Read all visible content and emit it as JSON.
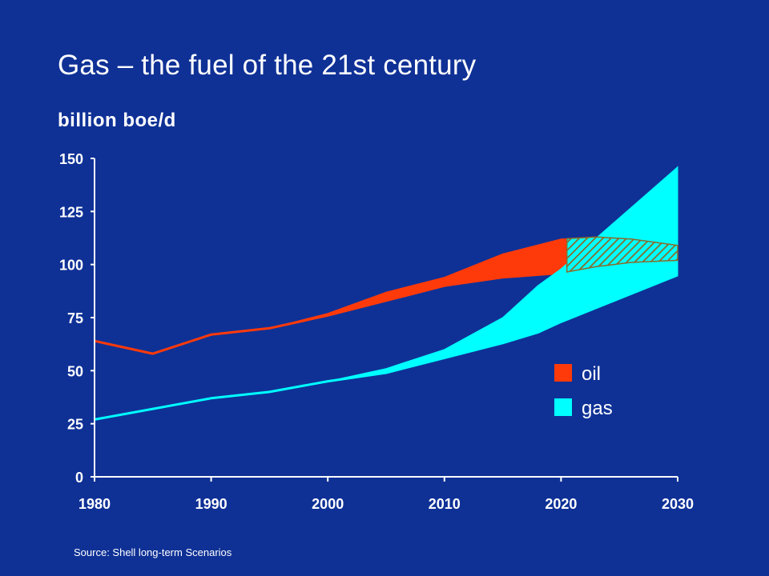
{
  "title": "Gas – the fuel of the 21st century",
  "unit_label": "billion boe/d",
  "source": "Source: Shell long-term Scenarios",
  "colors": {
    "background": "#0f3196",
    "oil": "#ff3a0a",
    "gas": "#00ffff",
    "overlap_hatch": "#8a6a2a"
  },
  "chart_data": {
    "type": "area",
    "title": "Gas – the fuel of the 21st century",
    "ylabel": "billion boe/d",
    "xlim": [
      1980,
      2030
    ],
    "ylim": [
      0,
      150
    ],
    "x_ticks": [
      1980,
      1990,
      2000,
      2010,
      2020,
      2030
    ],
    "y_ticks": [
      0,
      25,
      50,
      75,
      100,
      125,
      150
    ],
    "legend_position": "right",
    "series": [
      {
        "name": "oil",
        "color": "#ff3a0a",
        "x": [
          1980,
          1985,
          1990,
          1995,
          2000,
          2005,
          2010,
          2015,
          2020,
          2023,
          2026,
          2030
        ],
        "low": [
          64,
          58,
          67,
          70,
          76,
          83,
          90,
          94,
          96,
          99,
          101,
          102
        ],
        "high": [
          64,
          58,
          67,
          70,
          77,
          87,
          94,
          105,
          112,
          113,
          112,
          109
        ]
      },
      {
        "name": "gas",
        "color": "#00ffff",
        "x": [
          1980,
          1985,
          1990,
          1995,
          2000,
          2005,
          2010,
          2015,
          2018,
          2020,
          2025,
          2030
        ],
        "low": [
          27,
          32,
          37,
          40,
          45,
          49,
          56,
          63,
          68,
          73,
          84,
          95
        ],
        "high": [
          27,
          32,
          37,
          40,
          45,
          51,
          60,
          75,
          90,
          98,
          122,
          146
        ]
      }
    ]
  }
}
